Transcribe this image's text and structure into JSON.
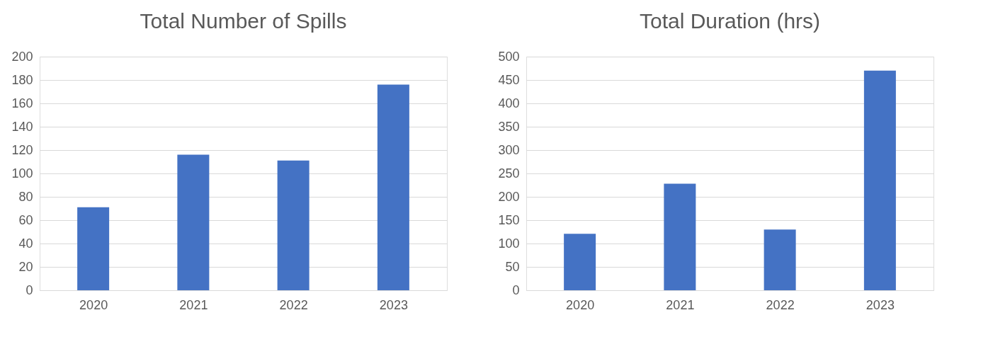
{
  "chart_data": [
    {
      "type": "bar",
      "title": "Total Number of Spills",
      "categories": [
        "2020",
        "2021",
        "2022",
        "2023"
      ],
      "values": [
        71,
        116,
        111,
        176
      ],
      "color": "#4472c4",
      "ylim": [
        0,
        200
      ],
      "yticks": [
        0,
        20,
        40,
        60,
        80,
        100,
        120,
        140,
        160,
        180,
        200
      ],
      "grid": "y"
    },
    {
      "type": "bar",
      "title": "Total Duration (hrs)",
      "categories": [
        "2020",
        "2021",
        "2022",
        "2023"
      ],
      "values": [
        121,
        228,
        130,
        470
      ],
      "color": "#4472c4",
      "ylim": [
        0,
        500
      ],
      "yticks": [
        0,
        50,
        100,
        150,
        200,
        250,
        300,
        350,
        400,
        450,
        500
      ],
      "grid": "y"
    }
  ]
}
